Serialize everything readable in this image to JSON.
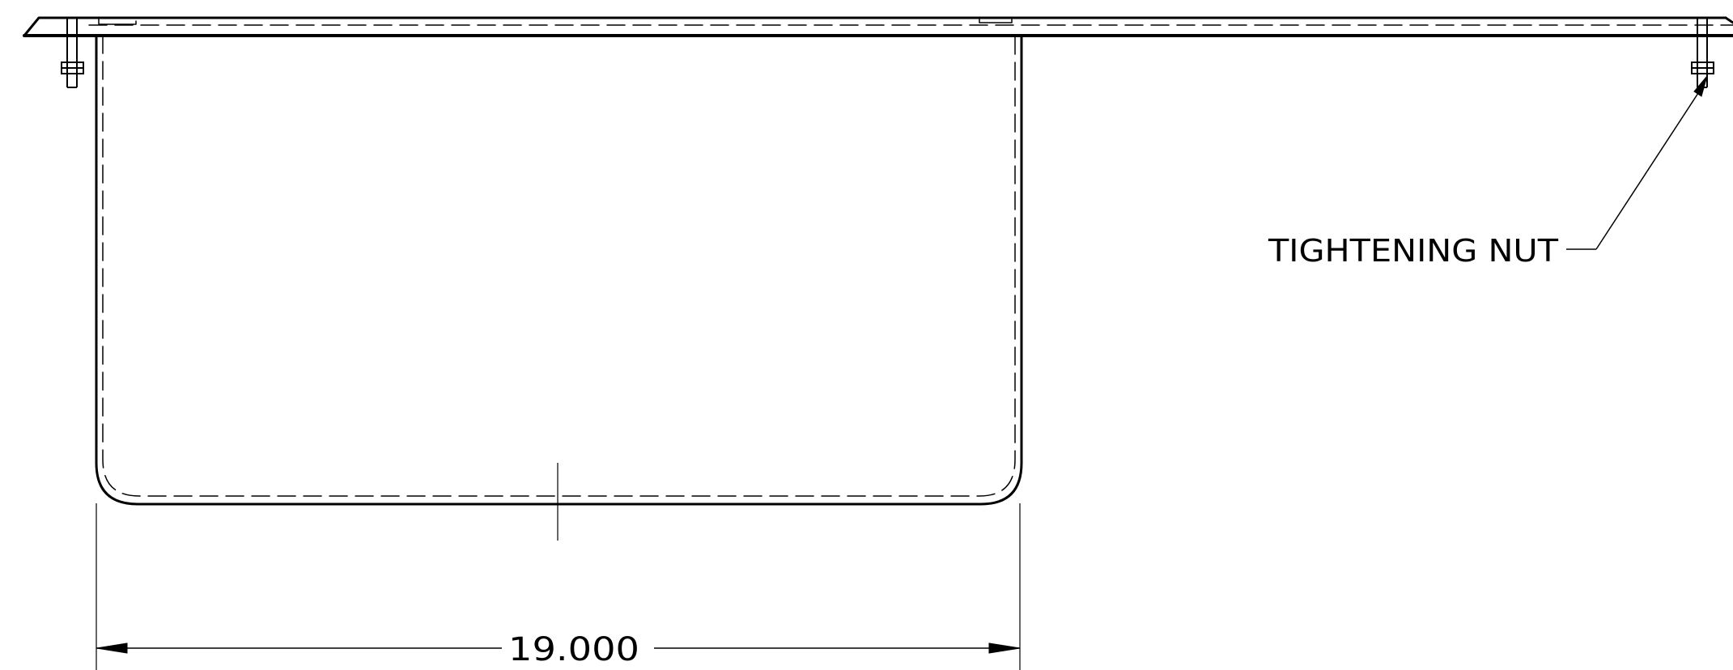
{
  "drawing": {
    "annotations": {
      "nut_label": "TIGHTENING NUT"
    },
    "dimensions": {
      "width_value": "19.000"
    },
    "colors": {
      "line": "#000000",
      "background": "#ffffff"
    }
  }
}
